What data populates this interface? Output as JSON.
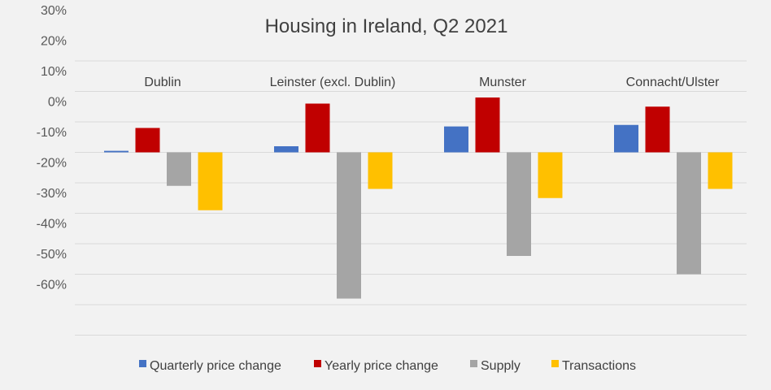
{
  "chart_data": {
    "type": "bar",
    "title": "Housing in Ireland, Q2 2021",
    "categories": [
      "Dublin",
      "Leinster (excl. Dublin)",
      "Munster",
      "Connacht/Ulster"
    ],
    "series": [
      {
        "name": "Quarterly price change",
        "color": "#4472c4",
        "values": [
          0.5,
          2,
          8.5,
          9
        ]
      },
      {
        "name": "Yearly price change",
        "color": "#c00000",
        "values": [
          8,
          16,
          18,
          15
        ]
      },
      {
        "name": "Supply",
        "color": "#a5a5a5",
        "values": [
          -11,
          -48,
          -34,
          -40
        ]
      },
      {
        "name": "Transactions",
        "color": "#ffc000",
        "values": [
          -19,
          -12,
          -15,
          -12
        ]
      }
    ],
    "yticks": [
      "30%",
      "20%",
      "10%",
      "0%",
      "-10%",
      "-20%",
      "-30%",
      "-40%",
      "-50%",
      "-60%"
    ],
    "ylim": [
      -60,
      30
    ],
    "grid": true,
    "legend_position": "bottom"
  }
}
